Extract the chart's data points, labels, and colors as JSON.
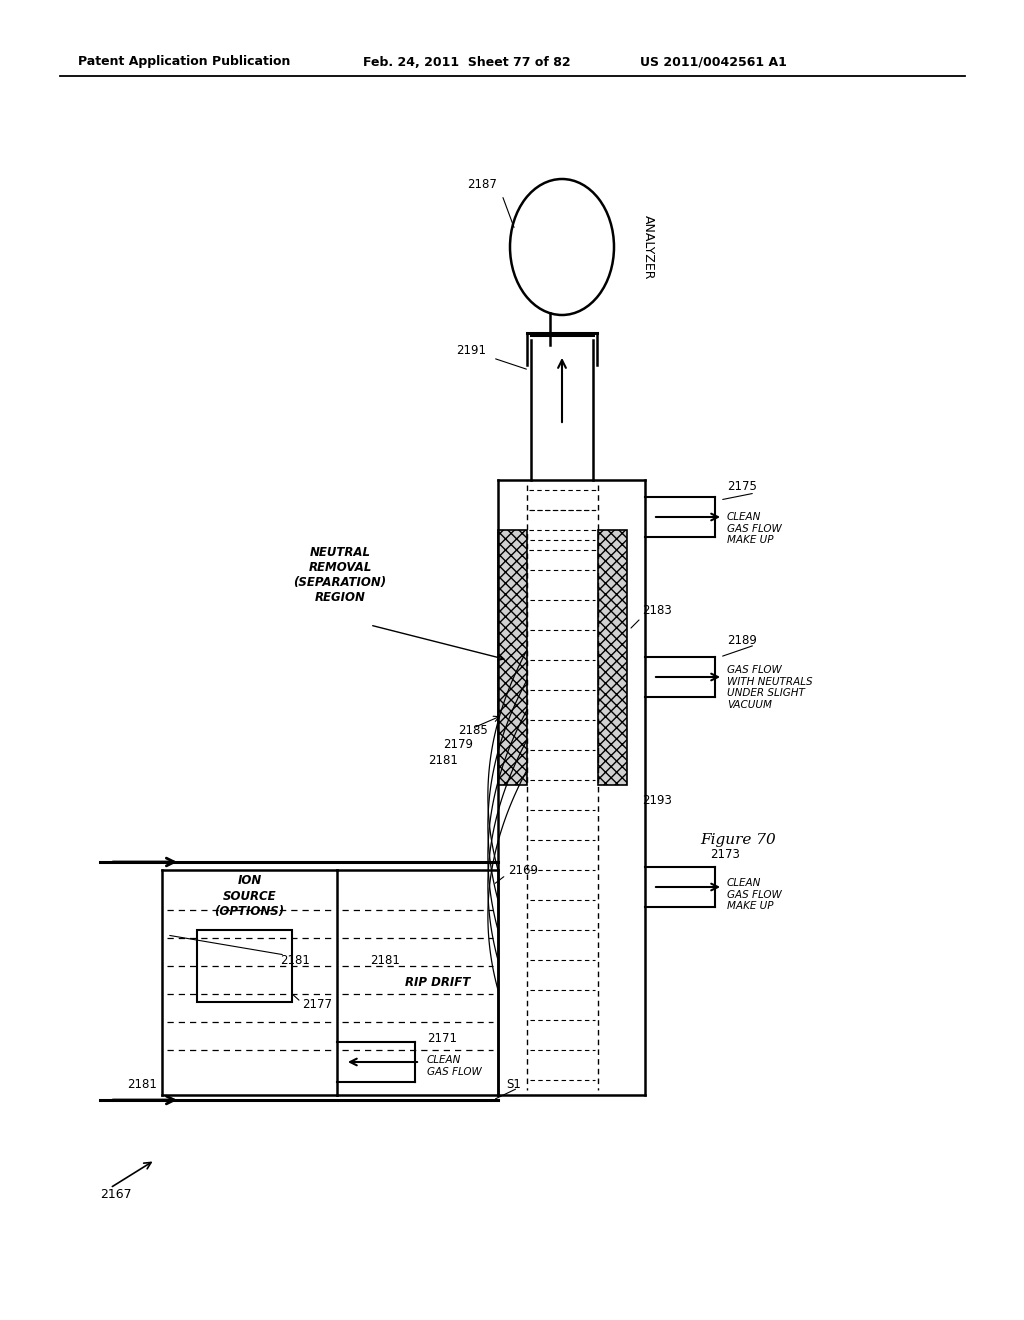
{
  "title_left": "Patent Application Publication",
  "title_mid": "Feb. 24, 2011  Sheet 77 of 82",
  "title_right": "US 2011/0042561 A1",
  "figure_label": "Figure 70",
  "bg_color": "#ffffff",
  "lc": "#000000"
}
